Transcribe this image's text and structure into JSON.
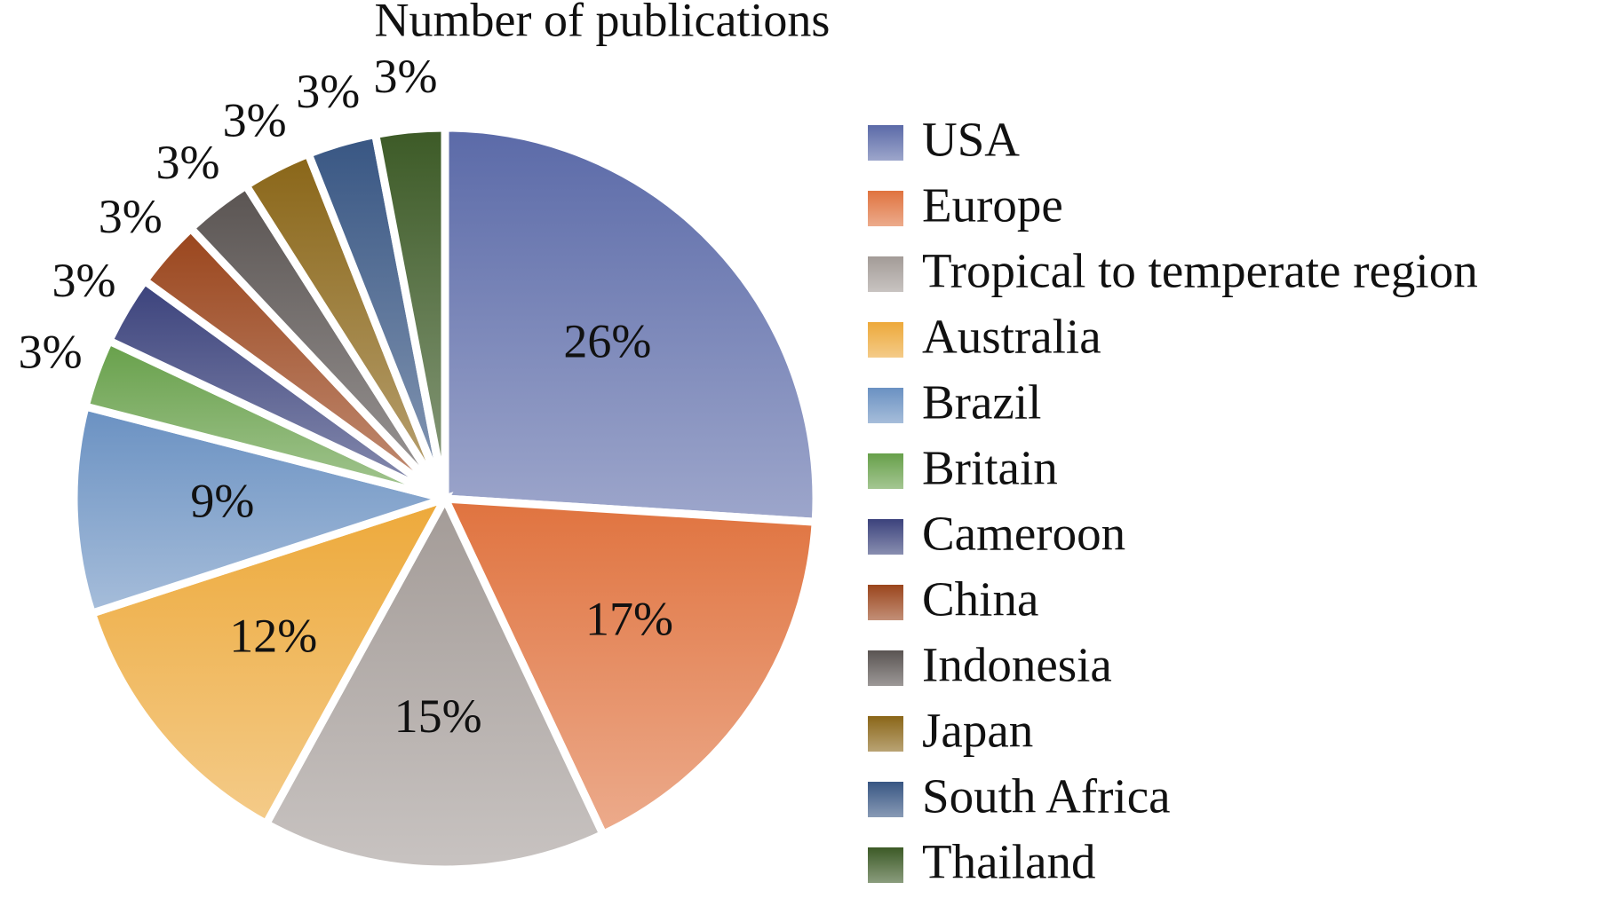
{
  "chart_data": {
    "type": "pie",
    "title": "Number of publications",
    "categories": [
      "USA",
      "Europe",
      "Tropical to temperate region",
      "Australia",
      "Brazil",
      "Britain",
      "Cameroon",
      "China",
      "Indonesia",
      "Japan",
      "South Africa",
      "Thailand"
    ],
    "values": [
      26,
      17,
      15,
      12,
      9,
      3,
      3,
      3,
      3,
      3,
      3,
      3
    ],
    "value_labels": [
      "26%",
      "17%",
      "15%",
      "12%",
      "9%",
      "3%",
      "3%",
      "3%",
      "3%",
      "3%",
      "3%",
      "3%"
    ],
    "colors": [
      "#5b6aa8",
      "#e0733f",
      "#a39b97",
      "#eda93a",
      "#6a91c2",
      "#67a04a",
      "#3b427c",
      "#9a451c",
      "#5a5452",
      "#8a6618",
      "#385683",
      "#3c5a26"
    ],
    "legend": "right"
  }
}
